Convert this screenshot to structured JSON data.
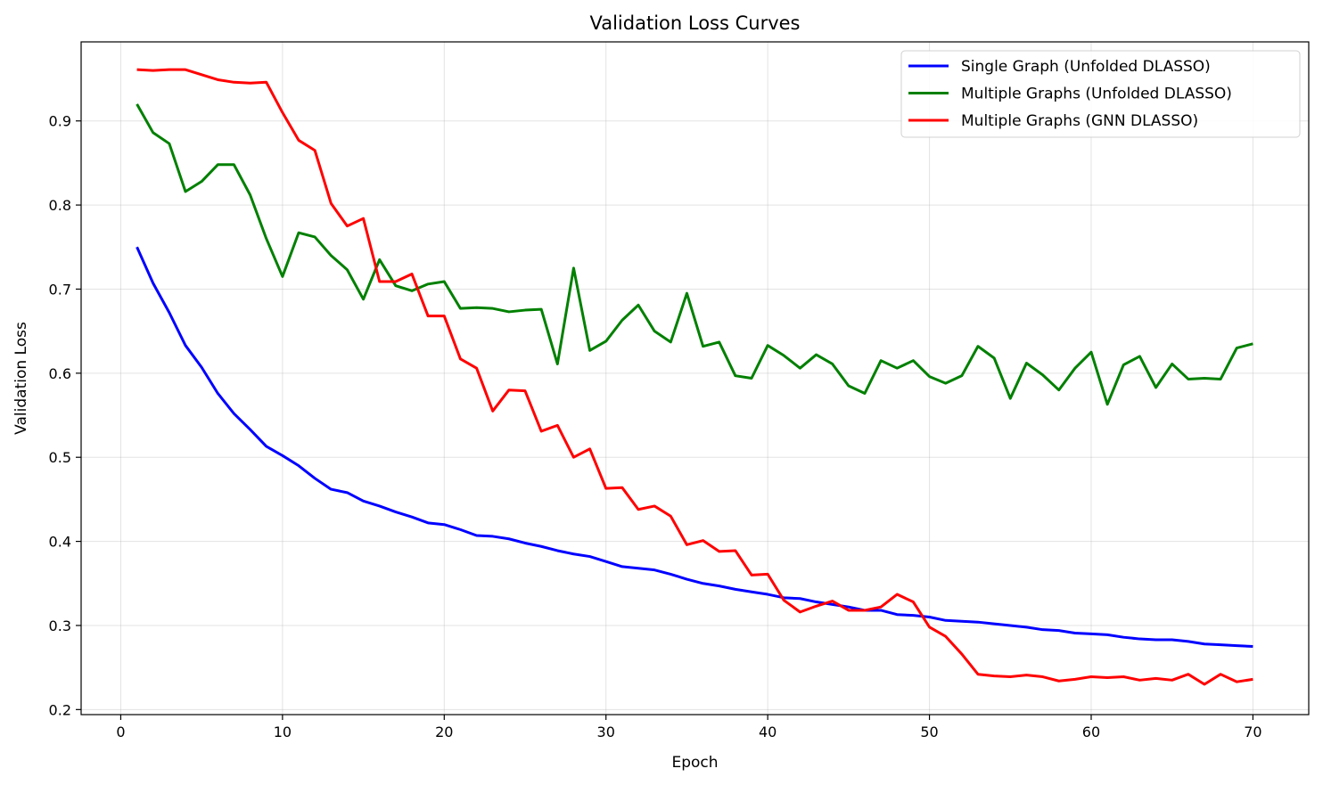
{
  "chart_data": {
    "type": "line",
    "title": "Validation Loss Curves",
    "xlabel": "Epoch",
    "ylabel": "Validation Loss",
    "xlim": [
      -2.45,
      73.45
    ],
    "ylim": [
      0.194,
      0.994
    ],
    "xticks": [
      0,
      10,
      20,
      30,
      40,
      50,
      60,
      70
    ],
    "yticks": [
      0.2,
      0.3,
      0.4,
      0.5,
      0.6,
      0.7,
      0.8,
      0.9
    ],
    "grid": true,
    "legend_position": "top-right",
    "x": [
      1,
      2,
      3,
      4,
      5,
      6,
      7,
      8,
      9,
      10,
      11,
      12,
      13,
      14,
      15,
      16,
      17,
      18,
      19,
      20,
      21,
      22,
      23,
      24,
      25,
      26,
      27,
      28,
      29,
      30,
      31,
      32,
      33,
      34,
      35,
      36,
      37,
      38,
      39,
      40,
      41,
      42,
      43,
      44,
      45,
      46,
      47,
      48,
      49,
      50,
      51,
      52,
      53,
      54,
      55,
      56,
      57,
      58,
      59,
      60,
      61,
      62,
      63,
      64,
      65,
      66,
      67,
      68,
      69,
      70
    ],
    "series": [
      {
        "name": "Single Graph (Unfolded DLASSO)",
        "color": "#0000ff",
        "values": [
          0.75,
          0.707,
          0.672,
          0.633,
          0.607,
          0.576,
          0.552,
          0.533,
          0.513,
          0.502,
          0.49,
          0.475,
          0.462,
          0.458,
          0.448,
          0.442,
          0.435,
          0.429,
          0.422,
          0.42,
          0.414,
          0.407,
          0.406,
          0.403,
          0.398,
          0.394,
          0.389,
          0.385,
          0.382,
          0.376,
          0.37,
          0.368,
          0.366,
          0.361,
          0.355,
          0.35,
          0.347,
          0.343,
          0.34,
          0.337,
          0.333,
          0.332,
          0.328,
          0.325,
          0.322,
          0.318,
          0.318,
          0.313,
          0.312,
          0.31,
          0.306,
          0.305,
          0.304,
          0.302,
          0.3,
          0.298,
          0.295,
          0.294,
          0.291,
          0.29,
          0.289,
          0.286,
          0.284,
          0.283,
          0.283,
          0.281,
          0.278,
          0.277,
          0.276,
          0.275
        ]
      },
      {
        "name": "Multiple Graphs (Unfolded DLASSO)",
        "color": "#008000",
        "values": [
          0.92,
          0.886,
          0.873,
          0.816,
          0.828,
          0.848,
          0.848,
          0.812,
          0.76,
          0.715,
          0.767,
          0.762,
          0.74,
          0.723,
          0.688,
          0.735,
          0.704,
          0.698,
          0.706,
          0.709,
          0.677,
          0.678,
          0.677,
          0.673,
          0.675,
          0.676,
          0.611,
          0.725,
          0.627,
          0.638,
          0.663,
          0.681,
          0.65,
          0.637,
          0.695,
          0.632,
          0.637,
          0.597,
          0.594,
          0.633,
          0.621,
          0.606,
          0.622,
          0.611,
          0.585,
          0.576,
          0.615,
          0.606,
          0.615,
          0.596,
          0.588,
          0.597,
          0.632,
          0.618,
          0.57,
          0.612,
          0.598,
          0.58,
          0.606,
          0.625,
          0.563,
          0.61,
          0.62,
          0.583,
          0.611,
          0.593,
          0.594,
          0.593,
          0.63,
          0.635
        ]
      },
      {
        "name": "Multiple Graphs (GNN DLASSO)",
        "color": "#ff0000",
        "values": [
          0.961,
          0.96,
          0.961,
          0.961,
          0.955,
          0.949,
          0.946,
          0.945,
          0.946,
          0.91,
          0.877,
          0.865,
          0.802,
          0.775,
          0.784,
          0.709,
          0.709,
          0.718,
          0.668,
          0.668,
          0.617,
          0.606,
          0.555,
          0.58,
          0.579,
          0.531,
          0.538,
          0.5,
          0.51,
          0.463,
          0.464,
          0.438,
          0.442,
          0.43,
          0.396,
          0.401,
          0.388,
          0.389,
          0.36,
          0.361,
          0.33,
          0.316,
          0.323,
          0.329,
          0.318,
          0.318,
          0.322,
          0.337,
          0.328,
          0.298,
          0.287,
          0.266,
          0.242,
          0.24,
          0.239,
          0.241,
          0.239,
          0.234,
          0.236,
          0.239,
          0.238,
          0.239,
          0.235,
          0.237,
          0.235,
          0.242,
          0.23,
          0.242,
          0.233,
          0.236
        ]
      }
    ]
  }
}
